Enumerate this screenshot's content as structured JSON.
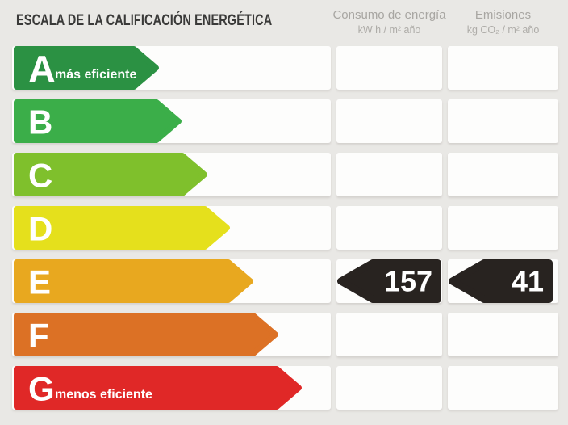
{
  "title": "ESCALA DE LA CALIFICACIÓN ENERGÉTICA",
  "columns": {
    "consumption": {
      "label": "Consumo de energía",
      "unit": "kW h / m² año"
    },
    "emissions": {
      "label": "Emisiones",
      "unit": "kg CO₂ / m² año"
    }
  },
  "scale": {
    "badge_color": "#282320",
    "rows": [
      {
        "grade": "A",
        "note": "más eficiente",
        "color": "#2b9143",
        "arrow_w": 180
      },
      {
        "grade": "B",
        "color": "#3bae49",
        "arrow_w": 208
      },
      {
        "grade": "C",
        "color": "#7fc02c",
        "arrow_w": 240
      },
      {
        "grade": "D",
        "color": "#e5e01c",
        "arrow_w": 268
      },
      {
        "grade": "E",
        "color": "#e8a81f",
        "arrow_w": 297,
        "consumption": "157",
        "emissions": "41"
      },
      {
        "grade": "F",
        "color": "#dc7125",
        "arrow_w": 328
      },
      {
        "grade": "G",
        "note": "menos eficiente",
        "color": "#e02827",
        "arrow_w": 357
      }
    ]
  },
  "chart_data": {
    "type": "bar",
    "orientation": "horizontal",
    "title": "ESCALA DE LA CALIFICACIÓN ENERGÉTICA",
    "categories": [
      "A",
      "B",
      "C",
      "D",
      "E",
      "F",
      "G"
    ],
    "values": [
      180,
      208,
      240,
      268,
      297,
      328,
      357
    ],
    "values_note": "bar lengths are fixed ordinal scale steps (pixels), not measured data",
    "colors": [
      "#2b9143",
      "#3bae49",
      "#7fc02c",
      "#e5e01c",
      "#e8a81f",
      "#dc7125",
      "#e02827"
    ],
    "annotations": [
      "A = más eficiente",
      "G = menos eficiente"
    ],
    "rating": "E",
    "metrics": {
      "consumo_de_energia": {
        "value": 157,
        "unit": "kW h / m² año",
        "grade": "E"
      },
      "emisiones": {
        "value": 41,
        "unit": "kg CO₂ / m² año",
        "grade": "E"
      }
    },
    "legend_position": "none",
    "grid": false
  }
}
